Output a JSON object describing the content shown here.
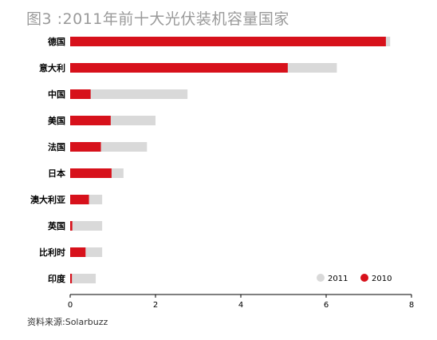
{
  "chart_data": {
    "type": "bar",
    "orientation": "horizontal",
    "title": "图3 :2011年前十大光伏装机容量国家",
    "categories": [
      "德国",
      "意大利",
      "中国",
      "美国",
      "法国",
      "日本",
      "澳大利亚",
      "英国",
      "比利时",
      "印度"
    ],
    "series": [
      {
        "name": "2011",
        "color": "#d9d9d9",
        "values": [
          7.5,
          6.25,
          2.75,
          2.0,
          1.8,
          1.25,
          0.75,
          0.75,
          0.75,
          0.6
        ]
      },
      {
        "name": "2010",
        "color": "#d7111b",
        "values": [
          7.4,
          5.1,
          0.48,
          0.95,
          0.72,
          0.97,
          0.44,
          0.05,
          0.36,
          0.04
        ]
      }
    ],
    "xlim": [
      0,
      8
    ],
    "xticks": [
      "0",
      "2",
      "4",
      "6",
      "8"
    ],
    "legend": "bottom-right",
    "grid": false
  },
  "source": "资料来源:Solarbuzz"
}
